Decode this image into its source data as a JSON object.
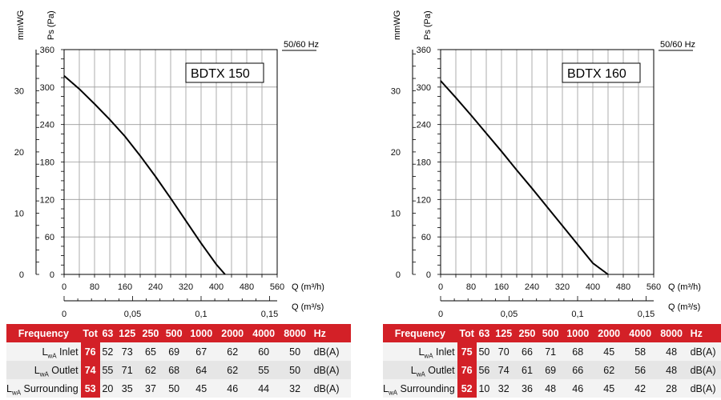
{
  "charts": [
    {
      "model": "BDTX 150",
      "frequency_label": "50/60 Hz",
      "unit_left": "mmWG",
      "unit_right": "Ps (Pa)",
      "x_label": "Q (m³/h)",
      "x2_label": "Q (m³/s)",
      "x_ticks": [
        "0",
        "80",
        "160",
        "240",
        "320",
        "400",
        "480",
        "560"
      ],
      "x2_ticks": [
        "0",
        "0,05",
        "0,1",
        "0,15"
      ],
      "pa_ticks": [
        "0",
        "60",
        "120",
        "180",
        "240",
        "300",
        "360"
      ],
      "mmwg_ticks": [
        "0",
        "10",
        "20",
        "30"
      ],
      "noise": {
        "header": [
          "Frequency",
          "Tot",
          "63",
          "125",
          "250",
          "500",
          "1000",
          "2000",
          "4000",
          "8000",
          "Hz"
        ],
        "rows": [
          {
            "label_main": "L",
            "label_sub": "wA",
            "label_text": " Inlet",
            "tot": "76",
            "values": [
              "52",
              "73",
              "65",
              "69",
              "67",
              "62",
              "60",
              "50"
            ],
            "unit": "dB(A)"
          },
          {
            "label_main": "L",
            "label_sub": "wA",
            "label_text": " Outlet",
            "tot": "74",
            "values": [
              "55",
              "71",
              "62",
              "68",
              "64",
              "62",
              "55",
              "50"
            ],
            "unit": "dB(A)"
          },
          {
            "label_main": "L",
            "label_sub": "wA",
            "label_text": " Surrounding",
            "tot": "53",
            "values": [
              "20",
              "35",
              "37",
              "50",
              "45",
              "46",
              "44",
              "32"
            ],
            "unit": "dB(A)"
          }
        ]
      }
    },
    {
      "model": "BDTX 160",
      "frequency_label": "50/60 Hz",
      "unit_left": "mmWG",
      "unit_right": "Ps (Pa)",
      "x_label": "Q (m³/h)",
      "x2_label": "Q (m³/s)",
      "x_ticks": [
        "0",
        "80",
        "160",
        "240",
        "320",
        "400",
        "480",
        "560"
      ],
      "x2_ticks": [
        "0",
        "0,05",
        "0,1",
        "0,15"
      ],
      "pa_ticks": [
        "0",
        "60",
        "120",
        "180",
        "240",
        "300",
        "360"
      ],
      "mmwg_ticks": [
        "0",
        "10",
        "20",
        "30"
      ],
      "noise": {
        "header": [
          "Frequency",
          "Tot",
          "63",
          "125",
          "250",
          "500",
          "1000",
          "2000",
          "4000",
          "8000",
          "Hz"
        ],
        "rows": [
          {
            "label_main": "L",
            "label_sub": "wA",
            "label_text": " Inlet",
            "tot": "75",
            "values": [
              "50",
              "70",
              "66",
              "71",
              "68",
              "45",
              "58",
              "48"
            ],
            "unit": "dB(A)"
          },
          {
            "label_main": "L",
            "label_sub": "wA",
            "label_text": " Outlet",
            "tot": "76",
            "values": [
              "56",
              "74",
              "61",
              "69",
              "66",
              "62",
              "56",
              "48"
            ],
            "unit": "dB(A)"
          },
          {
            "label_main": "L",
            "label_sub": "wA",
            "label_text": " Surrounding",
            "tot": "52",
            "values": [
              "10",
              "32",
              "36",
              "48",
              "46",
              "45",
              "42",
              "28"
            ],
            "unit": "dB(A)"
          }
        ]
      }
    }
  ],
  "chart_data": [
    {
      "type": "line",
      "title": "BDTX 150",
      "xlabel": "Q (m³/h)",
      "ylabel": "Ps (Pa)",
      "xlim": [
        0,
        560
      ],
      "ylim": [
        0,
        360
      ],
      "grid": true,
      "series": [
        {
          "x": [
            0,
            40,
            80,
            120,
            160,
            200,
            240,
            280,
            320,
            360,
            400,
            423
          ],
          "values": [
            318,
            297,
            273,
            248,
            221,
            190,
            157,
            122,
            86,
            50,
            16,
            0
          ]
        }
      ]
    },
    {
      "type": "line",
      "title": "BDTX 160",
      "xlabel": "Q (m³/h)",
      "ylabel": "Ps (Pa)",
      "xlim": [
        0,
        560
      ],
      "ylim": [
        0,
        360
      ],
      "grid": true,
      "series": [
        {
          "x": [
            0,
            40,
            80,
            120,
            160,
            200,
            240,
            280,
            320,
            360,
            400,
            440
          ],
          "values": [
            310,
            283,
            255,
            226,
            197,
            167,
            138,
            108,
            78,
            48,
            18,
            0
          ]
        }
      ]
    }
  ]
}
